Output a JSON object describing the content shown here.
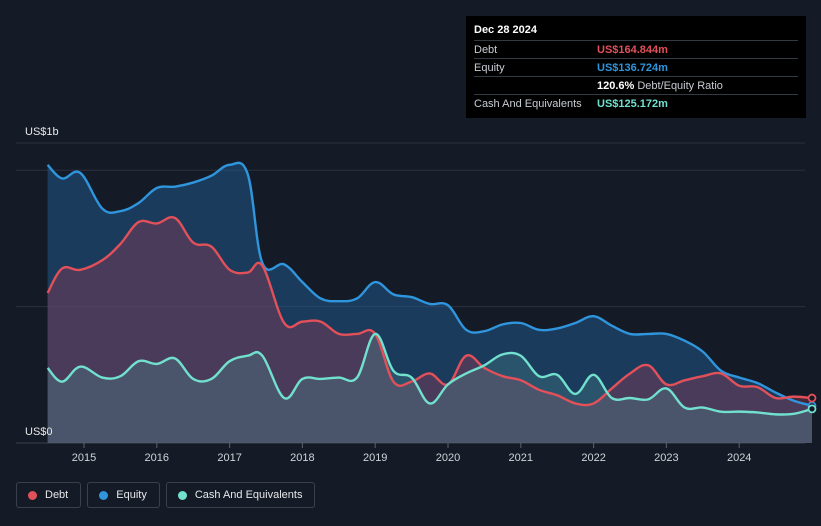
{
  "tooltip": {
    "date": "Dec 28 2024",
    "rows": [
      {
        "label": "Debt",
        "value": "US$164.844m",
        "color": "#e2505a"
      },
      {
        "label": "Equity",
        "value": "US$136.724m",
        "color": "#2f95dc"
      },
      {
        "label": "",
        "value": "120.6%",
        "suffix": "Debt/Equity Ratio",
        "color": "#ffffff"
      },
      {
        "label": "Cash And Equivalents",
        "value": "US$125.172m",
        "color": "#72e0cf"
      }
    ]
  },
  "legend": [
    {
      "label": "Debt",
      "color": "#e2505a"
    },
    {
      "label": "Equity",
      "color": "#2f95dc"
    },
    {
      "label": "Cash And Equivalents",
      "color": "#72e0cf"
    }
  ],
  "chart_data": {
    "type": "area",
    "y_top_label": "US$1b",
    "y_bottom_label": "US$0",
    "ylim": [
      0,
      1100
    ],
    "xlim": [
      2014.5,
      2025.0
    ],
    "x_ticks": [
      "2015",
      "2016",
      "2017",
      "2018",
      "2019",
      "2020",
      "2021",
      "2022",
      "2023",
      "2024"
    ],
    "grid": true,
    "legend_position": "bottom-left",
    "series": [
      {
        "name": "Equity",
        "color": "#2f95dc",
        "points": [
          [
            2014.5,
            1020
          ],
          [
            2014.7,
            970
          ],
          [
            2014.95,
            990
          ],
          [
            2015.25,
            860
          ],
          [
            2015.5,
            850
          ],
          [
            2015.75,
            880
          ],
          [
            2016.0,
            935
          ],
          [
            2016.25,
            940
          ],
          [
            2016.5,
            955
          ],
          [
            2016.75,
            980
          ],
          [
            2017.0,
            1020
          ],
          [
            2017.25,
            985
          ],
          [
            2017.45,
            660
          ],
          [
            2017.75,
            655
          ],
          [
            2018.0,
            590
          ],
          [
            2018.25,
            530
          ],
          [
            2018.5,
            520
          ],
          [
            2018.75,
            530
          ],
          [
            2019.0,
            590
          ],
          [
            2019.25,
            545
          ],
          [
            2019.5,
            535
          ],
          [
            2019.75,
            510
          ],
          [
            2020.0,
            505
          ],
          [
            2020.25,
            415
          ],
          [
            2020.5,
            410
          ],
          [
            2020.75,
            435
          ],
          [
            2021.0,
            440
          ],
          [
            2021.25,
            415
          ],
          [
            2021.5,
            420
          ],
          [
            2021.75,
            440
          ],
          [
            2022.0,
            465
          ],
          [
            2022.25,
            430
          ],
          [
            2022.5,
            400
          ],
          [
            2022.75,
            400
          ],
          [
            2023.0,
            400
          ],
          [
            2023.25,
            375
          ],
          [
            2023.5,
            335
          ],
          [
            2023.75,
            265
          ],
          [
            2024.0,
            240
          ],
          [
            2024.25,
            220
          ],
          [
            2024.5,
            185
          ],
          [
            2024.75,
            155
          ],
          [
            2025.0,
            136.7
          ]
        ]
      },
      {
        "name": "Debt",
        "color": "#e2505a",
        "points": [
          [
            2014.5,
            550
          ],
          [
            2014.7,
            640
          ],
          [
            2014.95,
            635
          ],
          [
            2015.25,
            670
          ],
          [
            2015.5,
            730
          ],
          [
            2015.75,
            810
          ],
          [
            2016.0,
            805
          ],
          [
            2016.25,
            825
          ],
          [
            2016.5,
            735
          ],
          [
            2016.75,
            720
          ],
          [
            2017.0,
            635
          ],
          [
            2017.25,
            625
          ],
          [
            2017.45,
            650
          ],
          [
            2017.75,
            440
          ],
          [
            2018.0,
            445
          ],
          [
            2018.25,
            445
          ],
          [
            2018.5,
            400
          ],
          [
            2018.75,
            400
          ],
          [
            2019.0,
            400
          ],
          [
            2019.25,
            225
          ],
          [
            2019.5,
            225
          ],
          [
            2019.75,
            255
          ],
          [
            2020.0,
            215
          ],
          [
            2020.25,
            320
          ],
          [
            2020.5,
            275
          ],
          [
            2020.75,
            245
          ],
          [
            2021.0,
            230
          ],
          [
            2021.25,
            195
          ],
          [
            2021.5,
            175
          ],
          [
            2021.75,
            145
          ],
          [
            2022.0,
            145
          ],
          [
            2022.25,
            200
          ],
          [
            2022.5,
            255
          ],
          [
            2022.75,
            285
          ],
          [
            2023.0,
            215
          ],
          [
            2023.25,
            230
          ],
          [
            2023.5,
            245
          ],
          [
            2023.75,
            255
          ],
          [
            2024.0,
            210
          ],
          [
            2024.25,
            205
          ],
          [
            2024.5,
            165
          ],
          [
            2024.75,
            170
          ],
          [
            2025.0,
            164.8
          ]
        ]
      },
      {
        "name": "Cash And Equivalents",
        "color": "#72e0cf",
        "points": [
          [
            2014.5,
            275
          ],
          [
            2014.7,
            225
          ],
          [
            2014.95,
            280
          ],
          [
            2015.25,
            240
          ],
          [
            2015.5,
            245
          ],
          [
            2015.75,
            300
          ],
          [
            2016.0,
            290
          ],
          [
            2016.25,
            310
          ],
          [
            2016.5,
            235
          ],
          [
            2016.75,
            235
          ],
          [
            2017.0,
            300
          ],
          [
            2017.25,
            320
          ],
          [
            2017.45,
            320
          ],
          [
            2017.75,
            165
          ],
          [
            2018.0,
            235
          ],
          [
            2018.25,
            235
          ],
          [
            2018.5,
            240
          ],
          [
            2018.75,
            240
          ],
          [
            2019.0,
            400
          ],
          [
            2019.25,
            265
          ],
          [
            2019.5,
            240
          ],
          [
            2019.75,
            145
          ],
          [
            2020.0,
            215
          ],
          [
            2020.25,
            255
          ],
          [
            2020.5,
            285
          ],
          [
            2020.75,
            325
          ],
          [
            2021.0,
            320
          ],
          [
            2021.25,
            245
          ],
          [
            2021.5,
            250
          ],
          [
            2021.75,
            180
          ],
          [
            2022.0,
            250
          ],
          [
            2022.25,
            165
          ],
          [
            2022.5,
            165
          ],
          [
            2022.75,
            160
          ],
          [
            2023.0,
            200
          ],
          [
            2023.25,
            130
          ],
          [
            2023.5,
            130
          ],
          [
            2023.75,
            115
          ],
          [
            2024.0,
            115
          ],
          [
            2024.25,
            112
          ],
          [
            2024.5,
            105
          ],
          [
            2024.75,
            107
          ],
          [
            2025.0,
            125.2
          ]
        ]
      }
    ]
  }
}
